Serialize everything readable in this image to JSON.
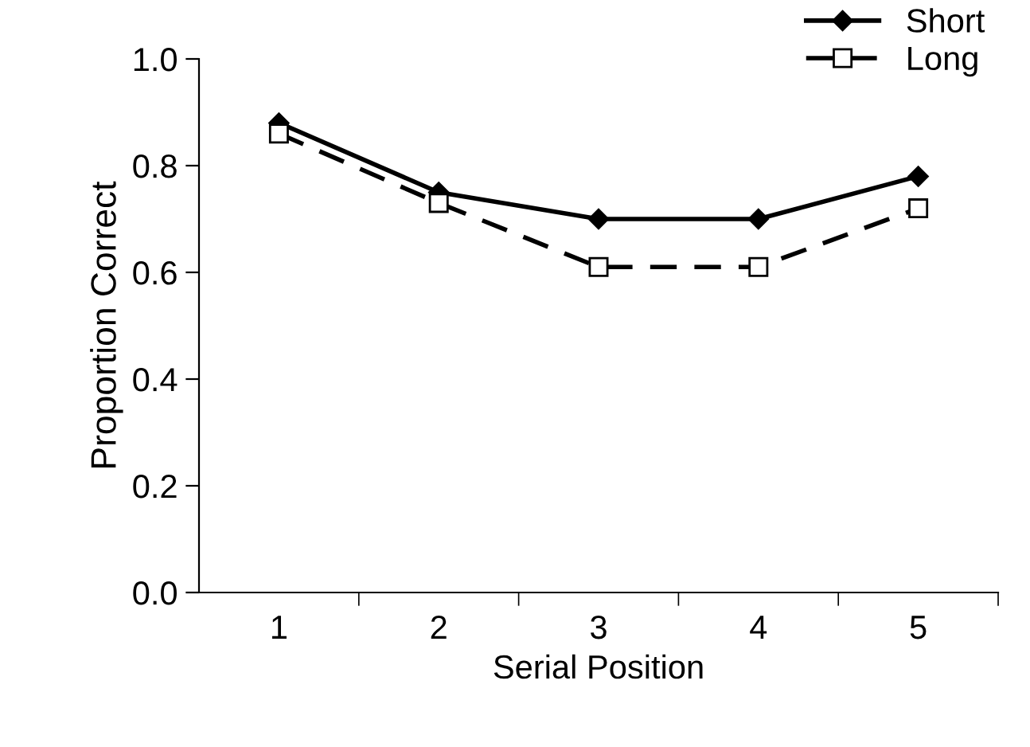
{
  "chart_data": {
    "type": "line",
    "xlabel": "Serial Position",
    "ylabel": "Proportion Correct",
    "categories": [
      "1",
      "2",
      "3",
      "4",
      "5"
    ],
    "ylim": [
      0,
      1.0
    ],
    "yticks": [
      {
        "value": 0,
        "label": "0.0"
      },
      0.2,
      0.4,
      0.6,
      0.8,
      {
        "value": 1.0,
        "label": "1.0"
      }
    ],
    "grid": false,
    "legend": "top right",
    "series": [
      {
        "name": "Short",
        "color": "#000000",
        "values": [
          0.88,
          0.75,
          0.7,
          0.7,
          0.78
        ],
        "marker": "diamond",
        "line_style": "solid"
      },
      {
        "name": "Long",
        "color": "#000000",
        "values": [
          0.86,
          0.73,
          0.61,
          0.61,
          0.72
        ],
        "marker": "square",
        "line_style": "dashed"
      }
    ]
  }
}
